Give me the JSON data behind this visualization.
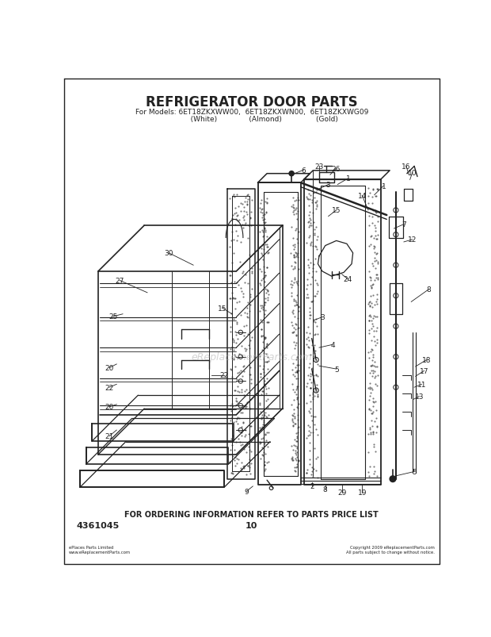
{
  "title": "REFRIGERATOR DOOR PARTS",
  "subtitle_line1": "For Models: 6ET18ZKXWW00,  6ET18ZKXWN00,  6ET18ZKXWG09",
  "subtitle_line2": "           (White)              (Almond)               (Gold)",
  "bottom_text": "FOR ORDERING INFORMATION REFER TO PARTS PRICE LIST",
  "part_number": "4361045",
  "page_number": "10",
  "bg_color": "#ffffff",
  "text_color": "#1a1a1a",
  "watermark": "eReplacementParts.com",
  "fine_print_left": "ePlaces Parts Limited\nwww.eReplacementParts.com",
  "fine_print_right": "Copyright 2009 eReplacementParts.com\nAll parts subject to change without notice.",
  "col": "#222222"
}
